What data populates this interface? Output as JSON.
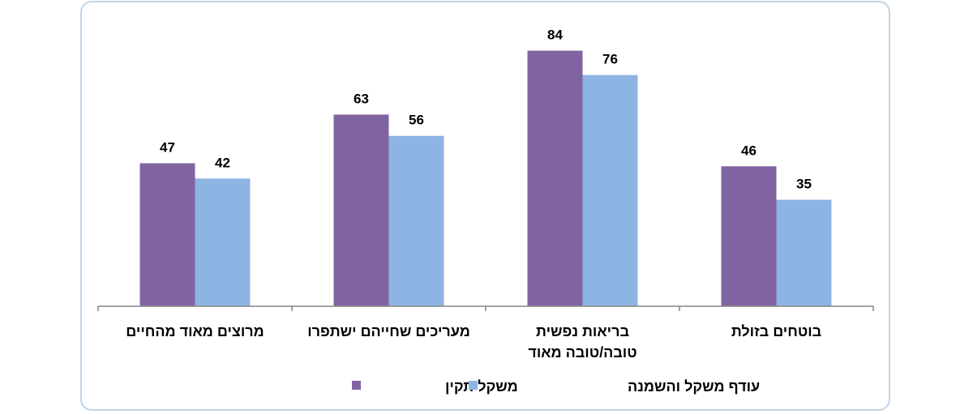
{
  "chart_data": {
    "type": "bar",
    "title": "",
    "xlabel": "",
    "ylabel": "",
    "categories": [
      [
        "בוטחים בזולת"
      ],
      [
        "בריאות נפשית",
        "טובה/טובה מאוד"
      ],
      [
        "מעריכים שחייהם ישתפרו"
      ],
      [
        "מרוצים מאוד מהחיים"
      ]
    ],
    "series": [
      {
        "name": "משקל תקין",
        "color": "#8064a2",
        "values": [
          46,
          84,
          63,
          47
        ]
      },
      {
        "name": "עודף משקל והשמנה",
        "color": "#8eb4e3",
        "values": [
          35,
          76,
          56,
          42
        ]
      }
    ],
    "ylim": [
      0,
      100
    ],
    "grid": false,
    "category_order": "right-to-left",
    "data_labels": true,
    "legend_position": "bottom"
  }
}
